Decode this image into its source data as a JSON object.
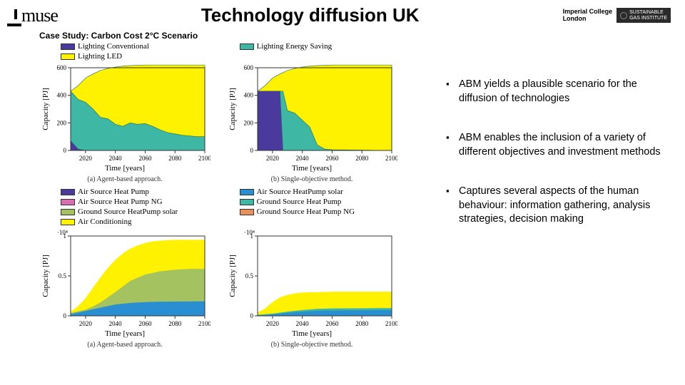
{
  "header": {
    "logo": "muse",
    "title": "Technology diffusion UK",
    "imperial_line1": "Imperial College",
    "imperial_line2": "London",
    "sgi_line1": "SUSTAINABLE",
    "sgi_line2": "GAS INSTITUTE"
  },
  "subtitle": "Case Study: Carbon Cost 2°C Scenario",
  "legend1": {
    "items": [
      {
        "label": "Lighting Conventional",
        "color": "#4a3a9e"
      },
      {
        "label": "Lighting Energy Saving",
        "color": "#3eb8a5"
      },
      {
        "label": "Lighting LED",
        "color": "#fff200"
      }
    ]
  },
  "legend2": {
    "items": [
      {
        "label": "Air Source Heat Pump",
        "color": "#4a3a9e"
      },
      {
        "label": "Air Source HeatPump solar",
        "color": "#2a8fd0"
      },
      {
        "label": "Air Source Heat Pump NG",
        "color": "#d96fb0"
      },
      {
        "label": "Ground Source Heat Pump",
        "color": "#3eb8a5"
      },
      {
        "label": "Ground Source HeatPump solar",
        "color": "#a5c261"
      },
      {
        "label": "Ground Source Heat Pump NG",
        "color": "#e8915a"
      },
      {
        "label": "Air Conditioning",
        "color": "#fff200"
      }
    ]
  },
  "charts": {
    "top_row": {
      "ylabel": "Capacity [PJ]",
      "xlabel": "Time [years]",
      "ylim": [
        0,
        600
      ],
      "ytick_step": 200,
      "xlim": [
        2010,
        2100
      ],
      "xtick_step": 20,
      "a": {
        "caption": "(a) Agent-based approach.",
        "series": [
          {
            "name": "conventional",
            "color": "#4a3a9e",
            "values": [
              [
                2010,
                70
              ],
              [
                2015,
                10
              ],
              [
                2020,
                0
              ],
              [
                2100,
                0
              ]
            ]
          },
          {
            "name": "energy_saving",
            "color": "#3eb8a5",
            "values": [
              [
                2010,
                430
              ],
              [
                2015,
                370
              ],
              [
                2020,
                350
              ],
              [
                2025,
                300
              ],
              [
                2030,
                240
              ],
              [
                2035,
                230
              ],
              [
                2040,
                190
              ],
              [
                2045,
                175
              ],
              [
                2050,
                200
              ],
              [
                2055,
                190
              ],
              [
                2060,
                195
              ],
              [
                2065,
                175
              ],
              [
                2070,
                150
              ],
              [
                2075,
                130
              ],
              [
                2080,
                120
              ],
              [
                2085,
                110
              ],
              [
                2090,
                105
              ],
              [
                2095,
                100
              ],
              [
                2100,
                100
              ]
            ]
          },
          {
            "name": "led",
            "color": "#fff200",
            "values": [
              [
                2010,
                430
              ],
              [
                2015,
                470
              ],
              [
                2020,
                525
              ],
              [
                2025,
                555
              ],
              [
                2030,
                580
              ],
              [
                2035,
                595
              ],
              [
                2040,
                605
              ],
              [
                2045,
                612
              ],
              [
                2050,
                616
              ],
              [
                2055,
                618
              ],
              [
                2060,
                620
              ],
              [
                2100,
                620
              ]
            ]
          }
        ]
      },
      "b": {
        "caption": "(b) Single-objective method.",
        "series": [
          {
            "name": "conventional",
            "color": "#4a3a9e",
            "values": [
              [
                2010,
                430
              ],
              [
                2015,
                430
              ],
              [
                2020,
                430
              ],
              [
                2025,
                430
              ],
              [
                2027,
                0
              ],
              [
                2100,
                0
              ]
            ]
          },
          {
            "name": "energy_saving",
            "color": "#3eb8a5",
            "values": [
              [
                2010,
                430
              ],
              [
                2027,
                430
              ],
              [
                2030,
                290
              ],
              [
                2035,
                270
              ],
              [
                2040,
                220
              ],
              [
                2045,
                170
              ],
              [
                2050,
                40
              ],
              [
                2055,
                10
              ],
              [
                2060,
                5
              ],
              [
                2100,
                0
              ]
            ]
          },
          {
            "name": "led",
            "color": "#fff200",
            "values": [
              [
                2010,
                430
              ],
              [
                2015,
                470
              ],
              [
                2020,
                525
              ],
              [
                2025,
                555
              ],
              [
                2030,
                580
              ],
              [
                2035,
                595
              ],
              [
                2040,
                605
              ],
              [
                2045,
                612
              ],
              [
                2050,
                616
              ],
              [
                2055,
                618
              ],
              [
                2060,
                620
              ],
              [
                2100,
                620
              ]
            ]
          }
        ]
      }
    },
    "bottom_row": {
      "ylabel": "Capacity [PJ]",
      "xlabel": "Time [years]",
      "ylim": [
        0,
        1
      ],
      "ytick_step": 0.5,
      "ymult_label": "·10⁴",
      "xlim": [
        2010,
        2100
      ],
      "xtick_step": 20,
      "a": {
        "caption": "(a) Agent-based approach.",
        "series": [
          {
            "name": "ghp_solar",
            "color": "#a5c261",
            "top": [
              [
                2010,
                0.04
              ],
              [
                2015,
                0.06
              ],
              [
                2020,
                0.08
              ],
              [
                2025,
                0.12
              ],
              [
                2030,
                0.17
              ],
              [
                2040,
                0.3
              ],
              [
                2050,
                0.44
              ],
              [
                2060,
                0.52
              ],
              [
                2070,
                0.56
              ],
              [
                2080,
                0.58
              ],
              [
                2090,
                0.59
              ],
              [
                2100,
                0.59
              ]
            ],
            "bottom": [
              [
                2010,
                0.02
              ],
              [
                2020,
                0.06
              ],
              [
                2030,
                0.1
              ],
              [
                2040,
                0.14
              ],
              [
                2050,
                0.16
              ],
              [
                2060,
                0.17
              ],
              [
                2070,
                0.175
              ],
              [
                2100,
                0.18
              ]
            ]
          },
          {
            "name": "ac",
            "color": "#fff200",
            "top": [
              [
                2010,
                0.05
              ],
              [
                2015,
                0.12
              ],
              [
                2020,
                0.22
              ],
              [
                2025,
                0.35
              ],
              [
                2030,
                0.48
              ],
              [
                2035,
                0.6
              ],
              [
                2040,
                0.7
              ],
              [
                2045,
                0.78
              ],
              [
                2050,
                0.84
              ],
              [
                2055,
                0.88
              ],
              [
                2060,
                0.91
              ],
              [
                2065,
                0.93
              ],
              [
                2070,
                0.94
              ],
              [
                2080,
                0.95
              ],
              [
                2100,
                0.95
              ]
            ],
            "bottom": "ghp_solar_top"
          },
          {
            "name": "lower_blue",
            "color": "#2a8fd0",
            "top": [
              [
                2010,
                0.02
              ],
              [
                2020,
                0.06
              ],
              [
                2030,
                0.1
              ],
              [
                2040,
                0.14
              ],
              [
                2050,
                0.16
              ],
              [
                2060,
                0.17
              ],
              [
                2070,
                0.175
              ],
              [
                2100,
                0.18
              ]
            ],
            "bottom": [
              [
                2010,
                0
              ],
              [
                2100,
                0
              ]
            ]
          }
        ]
      },
      "b": {
        "caption": "(b) Single-objective method.",
        "series": [
          {
            "name": "lower_blue",
            "color": "#2a8fd0",
            "top": [
              [
                2010,
                0.01
              ],
              [
                2020,
                0.02
              ],
              [
                2030,
                0.04
              ],
              [
                2040,
                0.055
              ],
              [
                2050,
                0.065
              ],
              [
                2060,
                0.07
              ],
              [
                2100,
                0.075
              ]
            ],
            "bottom": [
              [
                2010,
                0
              ],
              [
                2100,
                0
              ]
            ]
          },
          {
            "name": "teal",
            "color": "#3eb8a5",
            "top": [
              [
                2010,
                0.015
              ],
              [
                2020,
                0.03
              ],
              [
                2030,
                0.055
              ],
              [
                2040,
                0.075
              ],
              [
                2050,
                0.09
              ],
              [
                2060,
                0.095
              ],
              [
                2100,
                0.1
              ]
            ],
            "bottom": "lower_blue_top"
          },
          {
            "name": "ac",
            "color": "#fff200",
            "top": [
              [
                2010,
                0.04
              ],
              [
                2015,
                0.09
              ],
              [
                2020,
                0.17
              ],
              [
                2025,
                0.23
              ],
              [
                2030,
                0.26
              ],
              [
                2035,
                0.28
              ],
              [
                2040,
                0.29
              ],
              [
                2050,
                0.295
              ],
              [
                2060,
                0.3
              ],
              [
                2100,
                0.3
              ]
            ],
            "bottom": "teal_top"
          }
        ]
      }
    }
  },
  "bullets": [
    "ABM yields a plausible scenario for the diffusion of technologies",
    "ABM enables the inclusion of a variety of different objectives and investment methods",
    "Captures several aspects of the human behaviour: information gathering, analysis strategies, decision making"
  ],
  "chart_style": {
    "axis_color": "#333333",
    "axis_width": 1,
    "tick_fontsize": 9,
    "label_fontsize": 11,
    "caption_fontsize": 10,
    "plot_bg": "#ffffff"
  }
}
